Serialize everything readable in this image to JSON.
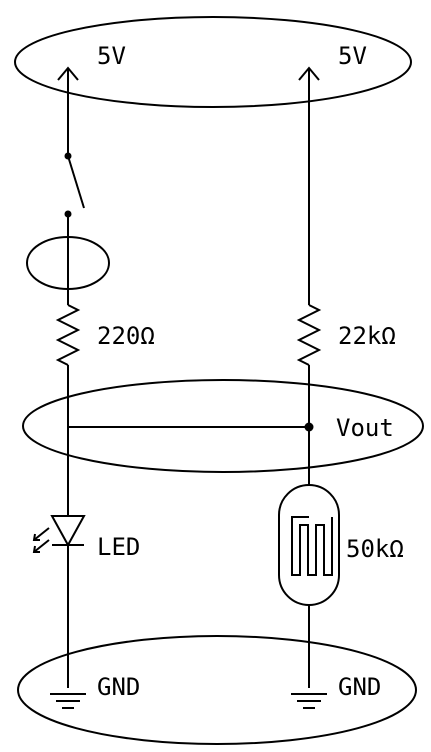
{
  "diagram": {
    "supply_left": "5V",
    "supply_right": "5V",
    "resistor_left": "220Ω",
    "resistor_right": "22kΩ",
    "output_node": "Vout",
    "led": "LED",
    "ldr": "50kΩ",
    "ground_left": "GND",
    "ground_right": "GND"
  },
  "colors": {
    "ink": "#000000",
    "background": "#ffffff"
  }
}
